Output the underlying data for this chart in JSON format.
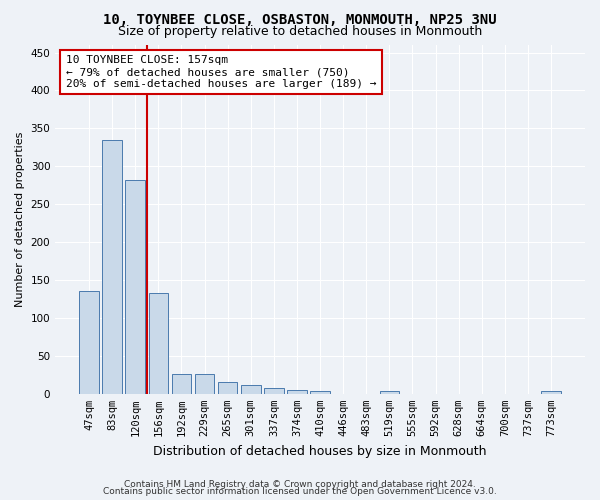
{
  "title": "10, TOYNBEE CLOSE, OSBASTON, MONMOUTH, NP25 3NU",
  "subtitle": "Size of property relative to detached houses in Monmouth",
  "xlabel": "Distribution of detached houses by size in Monmouth",
  "ylabel": "Number of detached properties",
  "categories": [
    "47sqm",
    "83sqm",
    "120sqm",
    "156sqm",
    "192sqm",
    "229sqm",
    "265sqm",
    "301sqm",
    "337sqm",
    "374sqm",
    "410sqm",
    "446sqm",
    "483sqm",
    "519sqm",
    "555sqm",
    "592sqm",
    "628sqm",
    "664sqm",
    "700sqm",
    "737sqm",
    "773sqm"
  ],
  "values": [
    135,
    335,
    282,
    133,
    26,
    26,
    15,
    11,
    7,
    5,
    4,
    0,
    0,
    4,
    0,
    0,
    0,
    0,
    0,
    0,
    4
  ],
  "bar_color": "#c9d9e9",
  "bar_edge_color": "#4a7aad",
  "red_line_x": 2.5,
  "annotation_line1": "10 TOYNBEE CLOSE: 157sqm",
  "annotation_line2": "← 79% of detached houses are smaller (750)",
  "annotation_line3": "20% of semi-detached houses are larger (189) →",
  "annotation_box_color": "#ffffff",
  "annotation_border_color": "#cc0000",
  "ylim": [
    0,
    460
  ],
  "yticks": [
    0,
    50,
    100,
    150,
    200,
    250,
    300,
    350,
    400,
    450
  ],
  "footer1": "Contains HM Land Registry data © Crown copyright and database right 2024.",
  "footer2": "Contains public sector information licensed under the Open Government Licence v3.0.",
  "background_color": "#eef2f7",
  "plot_bg_color": "#eef2f7",
  "title_fontsize": 10,
  "subtitle_fontsize": 9,
  "xlabel_fontsize": 9,
  "ylabel_fontsize": 8,
  "tick_fontsize": 7.5,
  "annotation_fontsize": 8,
  "footer_fontsize": 6.5
}
